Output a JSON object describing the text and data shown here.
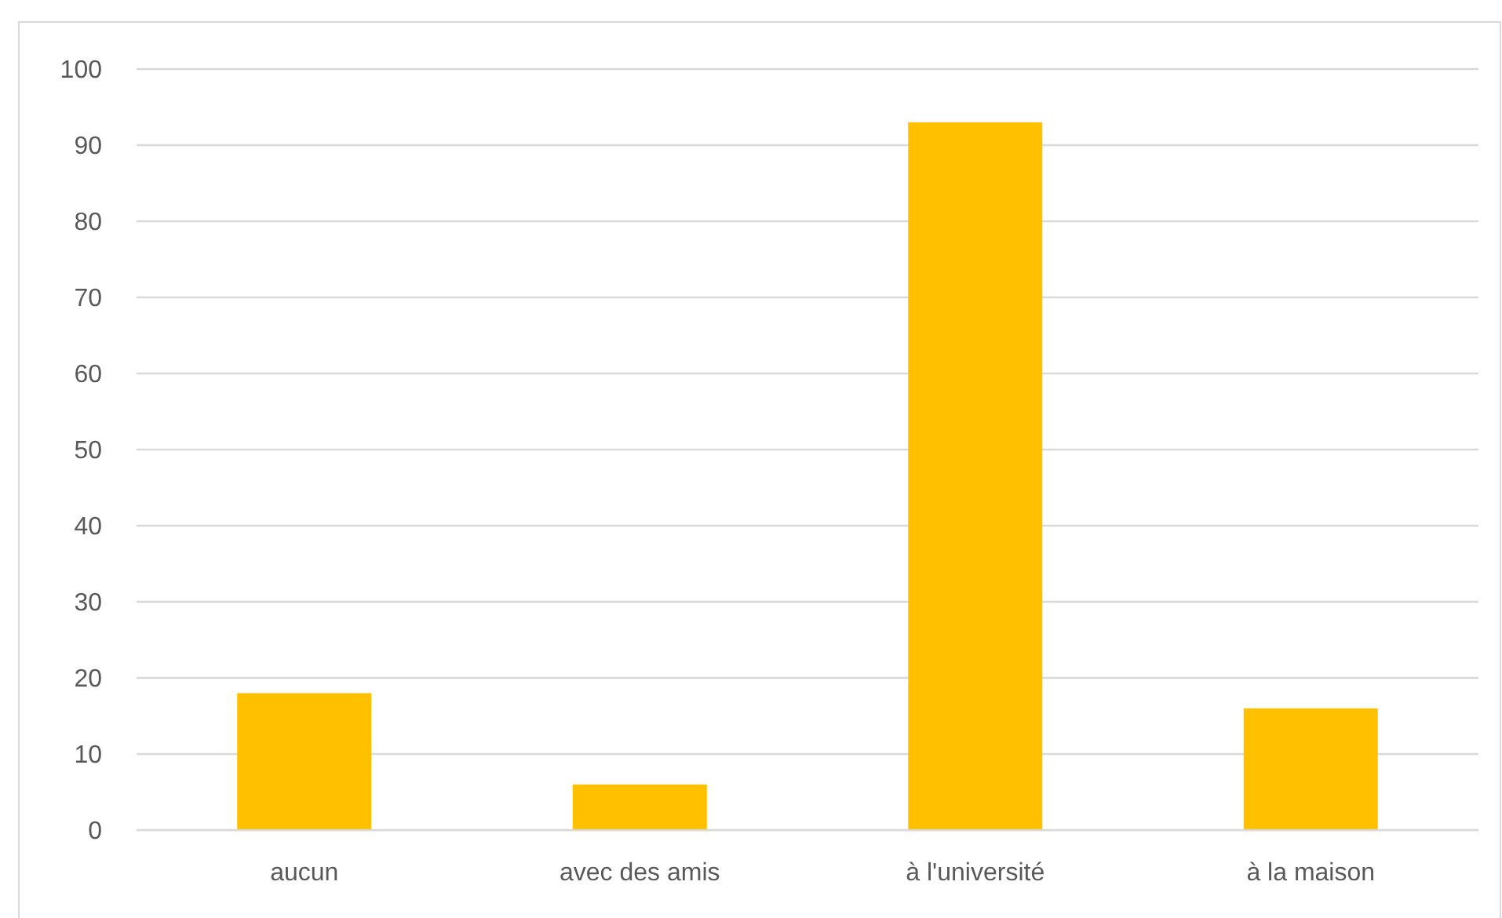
{
  "chart_data": {
    "type": "bar",
    "categories": [
      "aucun",
      "avec des amis",
      "à l'université",
      "à la maison"
    ],
    "values": [
      18,
      6,
      93,
      16
    ],
    "color": "#ffc000",
    "ylim": [
      0,
      100
    ],
    "yticks": [
      0,
      10,
      20,
      30,
      40,
      50,
      60,
      70,
      80,
      90,
      100
    ],
    "grid": "y"
  }
}
